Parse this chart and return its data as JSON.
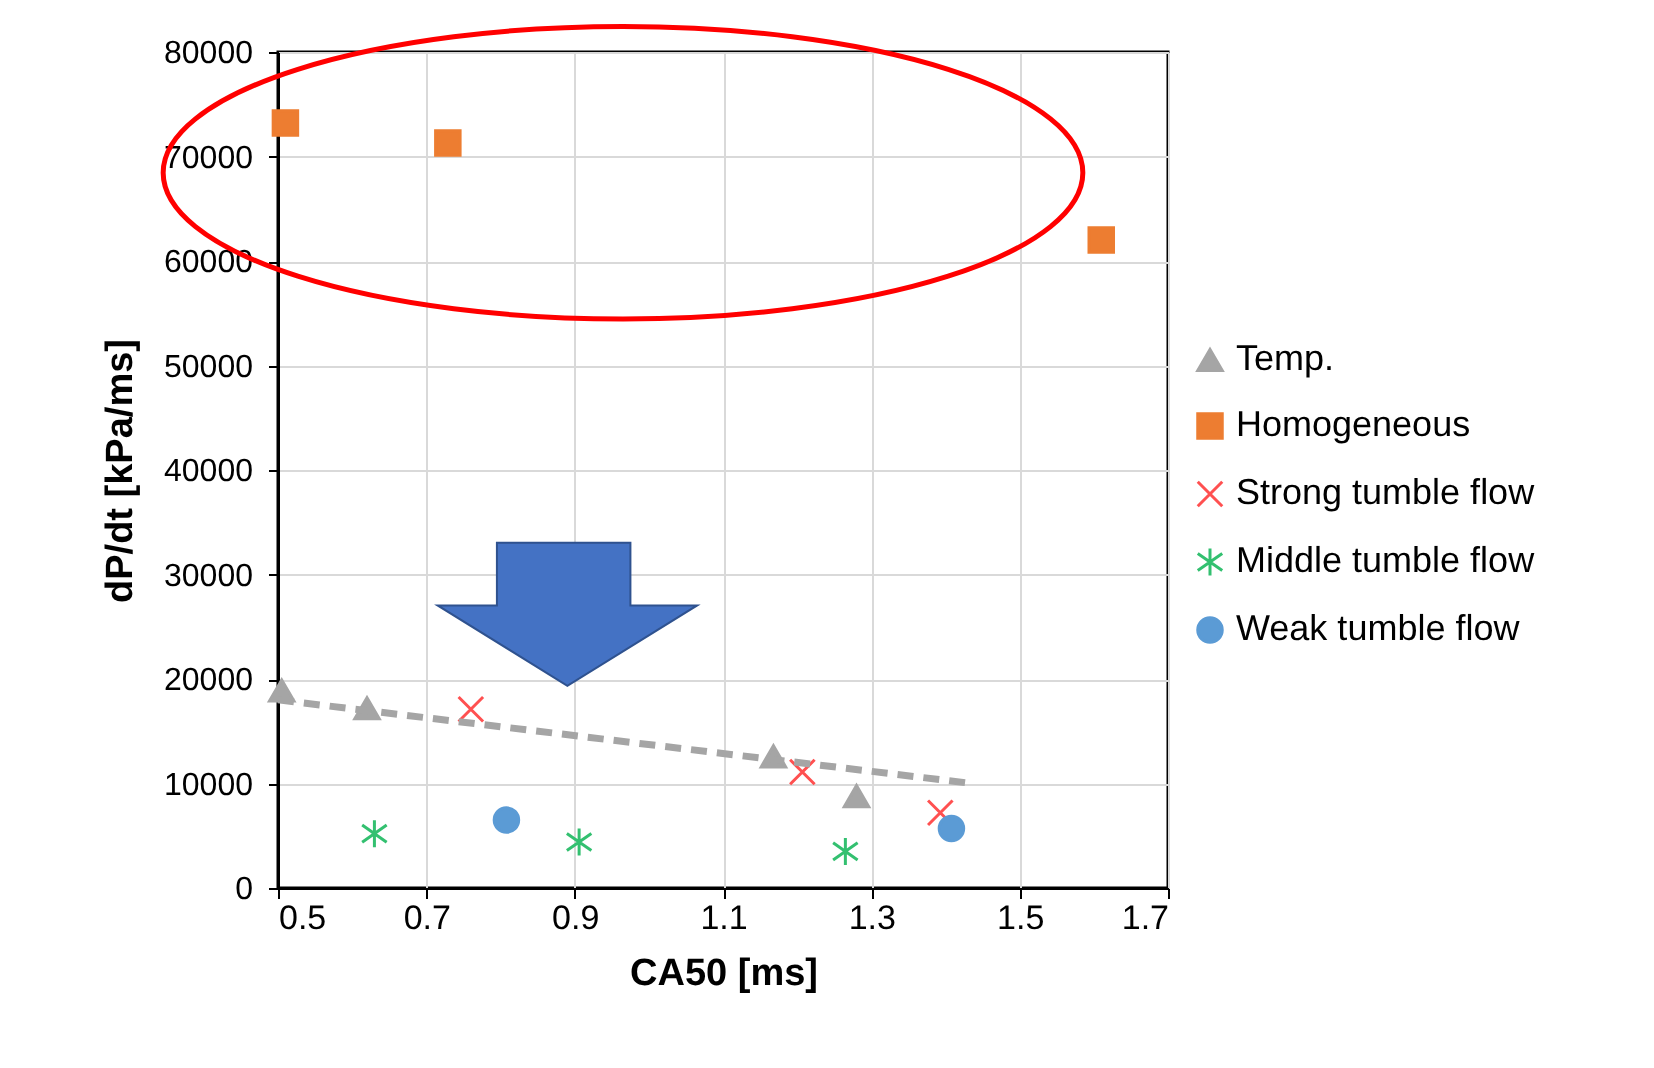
{
  "chart_data": {
    "type": "scatter",
    "xlabel": "CA50 [ms]",
    "ylabel": "dP/dt  [kPa/ms]",
    "xlim": [
      0.5,
      1.7
    ],
    "xticks": [
      0.5,
      0.7,
      0.9,
      1.1,
      1.3,
      1.5,
      1.7
    ],
    "ylim": [
      0,
      80000
    ],
    "yticks": [
      0,
      10000,
      20000,
      30000,
      40000,
      50000,
      60000,
      70000,
      80000
    ],
    "grid": true,
    "legend": "right",
    "series": [
      {
        "name": "Temp.",
        "color": "#a5a5a5",
        "marker": "triangle",
        "x": [
          0.505,
          0.62,
          1.168,
          1.28
        ],
        "values": [
          18900,
          17200,
          12600,
          8800
        ]
      },
      {
        "name": "Homogeneous",
        "color": "#ed7d31",
        "marker": "square",
        "x": [
          0.51,
          0.729,
          1.61
        ],
        "values": [
          73200,
          71300,
          62000
        ]
      },
      {
        "name": "Strong tumble flow",
        "color": "#ff5050",
        "marker": "cross",
        "x": [
          0.76,
          1.207,
          1.393
        ],
        "values": [
          17100,
          11100,
          7200
        ]
      },
      {
        "name": "Middle tumble flow",
        "color": "#33c070",
        "x": [
          0.63,
          0.906,
          1.265
        ],
        "values": [
          5200,
          4400,
          3500
        ]
      },
      {
        "name": "Weak tumble flow",
        "color": "#5b9bd5",
        "marker": "circle",
        "x": [
          0.808,
          1.408
        ],
        "values": [
          6500,
          5700
        ]
      },
      {
        "type": "line",
        "color": "#a5a5a5",
        "line_style": "dashed",
        "x": [
          0.5,
          1.436
        ],
        "values": [
          18000,
          10000
        ]
      }
    ]
  }
}
